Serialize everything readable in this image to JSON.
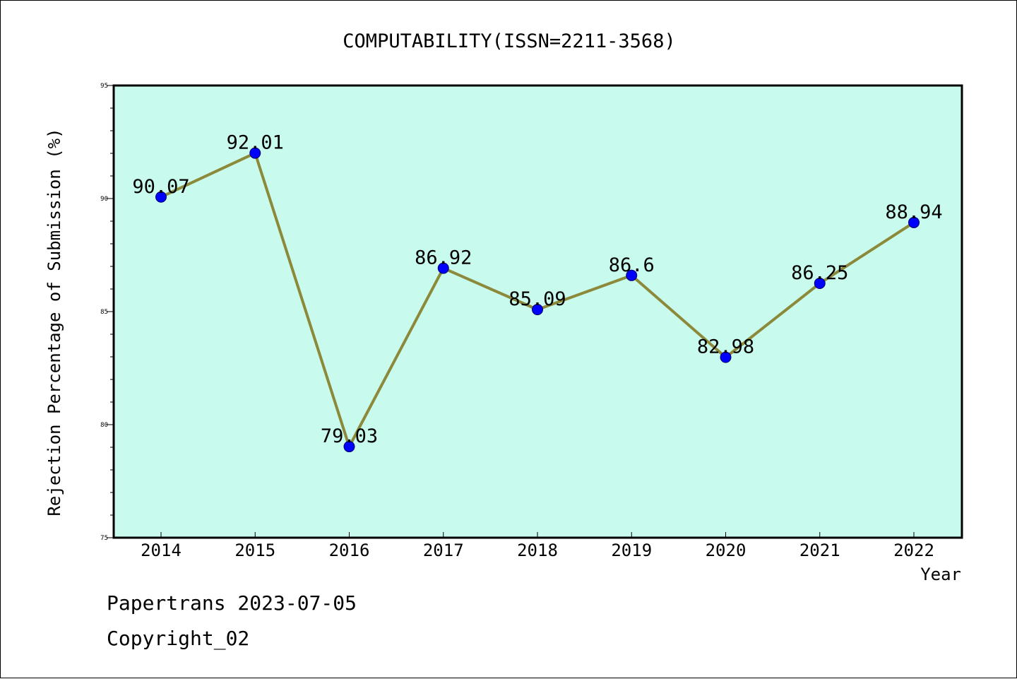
{
  "chart_data": {
    "type": "line",
    "title": "COMPUTABILITY(ISSN=2211-3568)",
    "xlabel": "Year",
    "ylabel": "Rejection Percentage of Submission (%)",
    "categories": [
      "2014",
      "2015",
      "2016",
      "2017",
      "2018",
      "2019",
      "2020",
      "2021",
      "2022"
    ],
    "values": [
      90.07,
      92.01,
      79.03,
      86.92,
      85.09,
      86.6,
      82.98,
      86.25,
      88.94
    ],
    "data_labels": [
      "90.07",
      "92.01",
      "79.03",
      "86.92",
      "85.09",
      "86.6",
      "82.98",
      "86.25",
      "88.94"
    ],
    "ylim": [
      75,
      95
    ],
    "yticks": [
      "75",
      "80",
      "85",
      "90",
      "95"
    ],
    "grid": false,
    "legend": "none",
    "colors": {
      "plot_background": "#c8fbee",
      "line": "#8c8a3a",
      "marker": "#0000ff",
      "marker_edge": "#000066",
      "axes": "#000000"
    }
  },
  "footer": {
    "line1": "Papertrans 2023-07-05",
    "line2": "Copyright_02"
  }
}
